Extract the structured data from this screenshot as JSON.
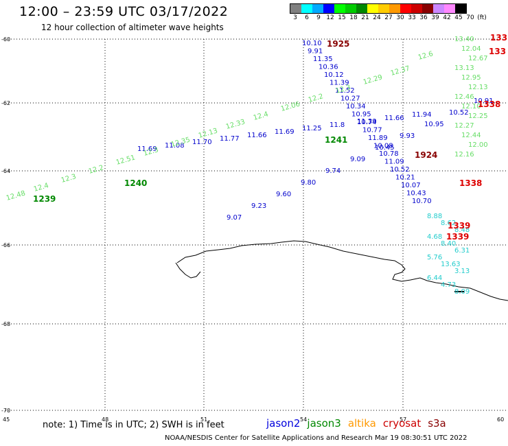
{
  "header": {
    "title": "12:00 – 23:59 UTC 03/17/2022",
    "subtitle": "12 hour collection of altimeter wave heights"
  },
  "scale": {
    "colors": [
      "#808080",
      "#00ffff",
      "#00aaff",
      "#0000ff",
      "#00ff00",
      "#00cc00",
      "#008800",
      "#ffff00",
      "#ffcc00",
      "#ff9900",
      "#ff0000",
      "#cc0000",
      "#880000",
      "#cc88ff",
      "#ff88ff",
      "#000000"
    ],
    "labels": [
      "3",
      "6",
      "9",
      "12",
      "15",
      "18",
      "21",
      "24",
      "27",
      "30",
      "33",
      "36",
      "39",
      "42",
      "45",
      "70",
      "(ft)"
    ]
  },
  "axes": {
    "lat_labels": [
      "-60",
      "-62",
      "-64",
      "-66",
      "-68",
      "-70"
    ],
    "lon_labels": [
      "45",
      "48",
      "51",
      "54",
      "57",
      "60"
    ]
  },
  "tracks": [
    {
      "color": "#0000cc",
      "values": [
        "10.10",
        "9.91",
        "11.35",
        "10.36",
        "10.12",
        "11.39",
        "11.52",
        "10.27",
        "10.34",
        "10.95",
        "10.74",
        "10.77",
        "11.89",
        "10.08",
        "10.78",
        "11.09",
        "10.52",
        "10.21",
        "10.07",
        "10.43",
        "10.70"
      ]
    },
    {
      "color": "#0000cc",
      "values": [
        "11.94",
        "11.66",
        "11.39",
        "11.8",
        "11.25",
        "11.69",
        "11.66",
        "11.77",
        "11.70",
        "11.08",
        "11.69",
        "10.91",
        "10.52",
        "10.95",
        "9.93",
        "10.45",
        "9.09",
        "9.74",
        "9.80",
        "9.60",
        "9.23",
        "9.07"
      ]
    },
    {
      "color": "#66dd66",
      "values": [
        "12.48",
        "12.4",
        "12.3",
        "12.2",
        "12.51",
        "12.3",
        "12.35",
        "12.13",
        "12.33",
        "12.4",
        "12.06",
        "12.2",
        "12.3",
        "12.29",
        "12.37",
        "12.6",
        "13.40",
        "12.04",
        "12.67",
        "13.13",
        "12.95",
        "12.13",
        "12.46",
        "12.10",
        "12.25",
        "12.27",
        "12.44",
        "12.00",
        "12.16"
      ]
    },
    {
      "color": "#22cccc",
      "values": [
        "8.88",
        "8.62",
        "8.48",
        "4.68",
        "8.40",
        "6.31",
        "5.76",
        "13.63",
        "3.13",
        "6.44",
        "4.73",
        "8.09"
      ]
    }
  ],
  "time_labels": [
    {
      "text": "1925",
      "color": "#880000"
    },
    {
      "text": "1924",
      "color": "#880000"
    },
    {
      "text": "1241",
      "color": "#008800"
    },
    {
      "text": "1240",
      "color": "#008800"
    },
    {
      "text": "1239",
      "color": "#008800"
    },
    {
      "text": "1338",
      "color": "#dd0000"
    },
    {
      "text": "1338",
      "color": "#dd0000"
    },
    {
      "text": "1339",
      "color": "#dd0000"
    },
    {
      "text": "1339",
      "color": "#dd0000"
    },
    {
      "text": "133",
      "color": "#dd0000"
    },
    {
      "text": "133",
      "color": "#dd0000"
    }
  ],
  "footer": {
    "note": "note: 1) Time is in UTC; 2) SWH is in feet",
    "legend": [
      {
        "label": "jason2",
        "color": "#0000dd"
      },
      {
        "label": "jason3",
        "color": "#008800"
      },
      {
        "label": "altika",
        "color": "#ff9900"
      },
      {
        "label": "cryosat",
        "color": "#cc0000"
      },
      {
        "label": "s3a",
        "color": "#880000"
      }
    ],
    "credit": "NOAA/NESDIS Center for Satellite Applications and Research    Mar 19 08:30:51 UTC 2022"
  }
}
